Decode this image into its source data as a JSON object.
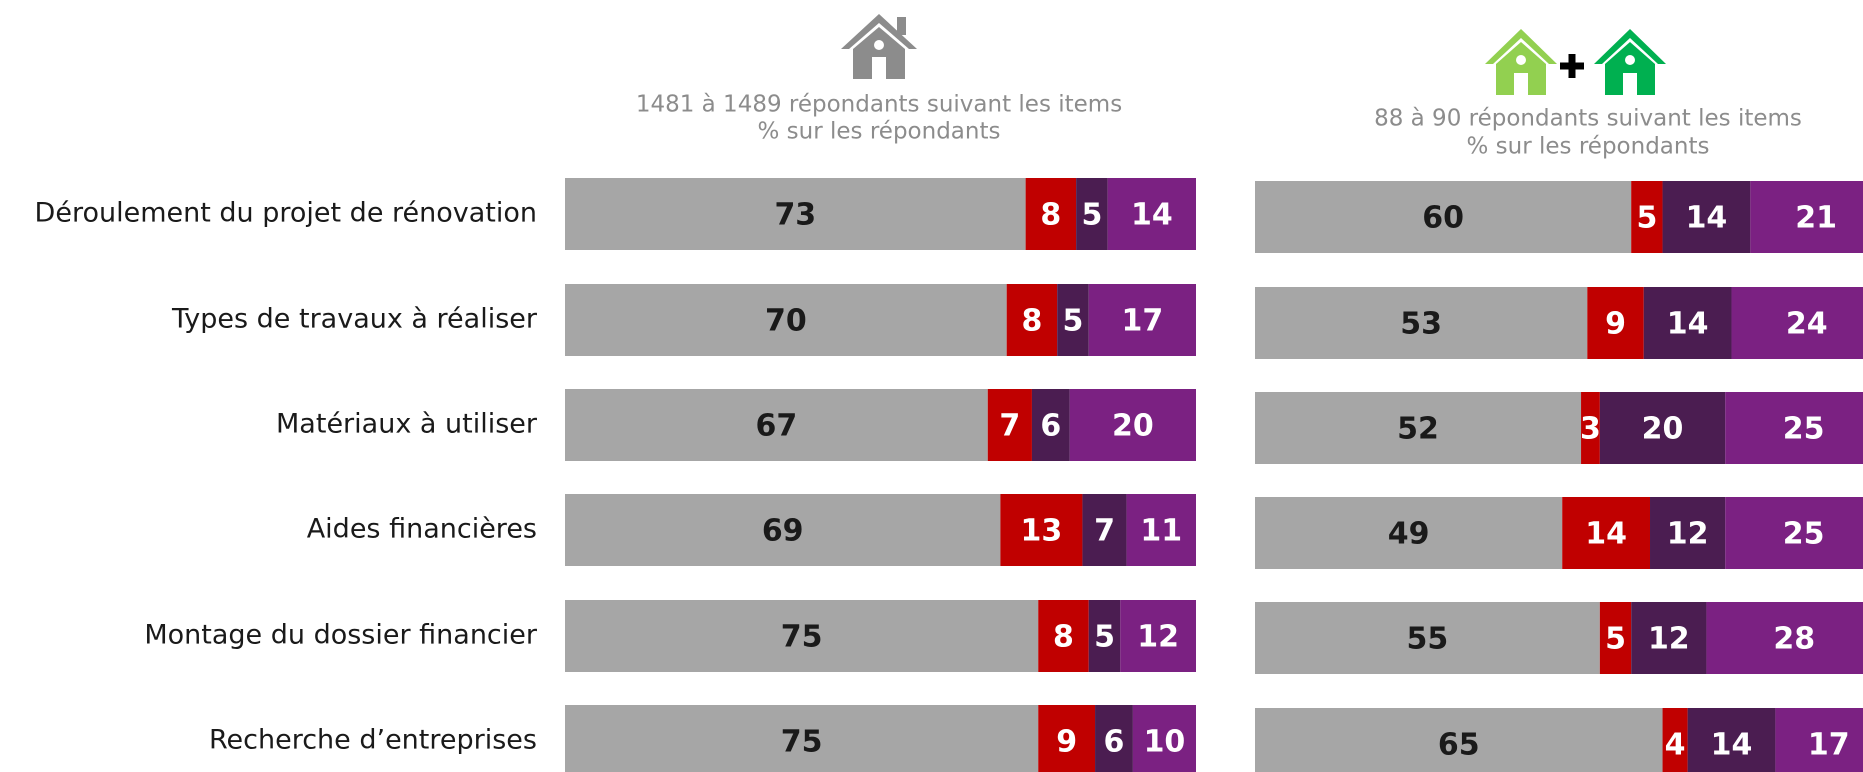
{
  "chart_data": [
    {
      "type": "bar",
      "orientation": "horizontal",
      "stacked": true,
      "subtitle": [
        "1481 à 1489 répondants suivant les items",
        "% sur les répondants"
      ],
      "categories": [
        "Déroulement du projet de rénovation",
        "Types de travaux à réaliser",
        "Matériaux à utiliser",
        "Aides financières",
        "Montage du dossier financier",
        "Recherche d’entreprises"
      ],
      "xlim": [
        0,
        100
      ],
      "series": [
        {
          "color": "#a6a6a6",
          "label_color": "#1a1a1a",
          "values": [
            73,
            70,
            67,
            69,
            75,
            75
          ]
        },
        {
          "color": "#c00000",
          "label_color": "#ffffff",
          "values": [
            8,
            8,
            7,
            13,
            8,
            9
          ]
        },
        {
          "color": "#4b1d51",
          "label_color": "#ffffff",
          "values": [
            5,
            5,
            6,
            7,
            5,
            6
          ]
        },
        {
          "color": "#7b2182",
          "label_color": "#ffffff",
          "values": [
            14,
            17,
            20,
            11,
            12,
            10
          ]
        }
      ]
    },
    {
      "type": "bar",
      "orientation": "horizontal",
      "stacked": true,
      "subtitle": [
        "88 à 90 répondants suivant les items",
        "% sur les répondants"
      ],
      "xlim": [
        0,
        100
      ],
      "series": [
        {
          "color": "#a6a6a6",
          "label_color": "#1a1a1a",
          "values": [
            60,
            53,
            52,
            49,
            55,
            65
          ]
        },
        {
          "color": "#c00000",
          "label_color": "#ffffff",
          "values": [
            5,
            9,
            3,
            14,
            5,
            4
          ]
        },
        {
          "color": "#4b1d51",
          "label_color": "#ffffff",
          "values": [
            14,
            14,
            20,
            12,
            12,
            14
          ]
        },
        {
          "color": "#7b2182",
          "label_color": "#ffffff",
          "values": [
            21,
            24,
            25,
            25,
            28,
            17
          ]
        }
      ]
    }
  ]
}
